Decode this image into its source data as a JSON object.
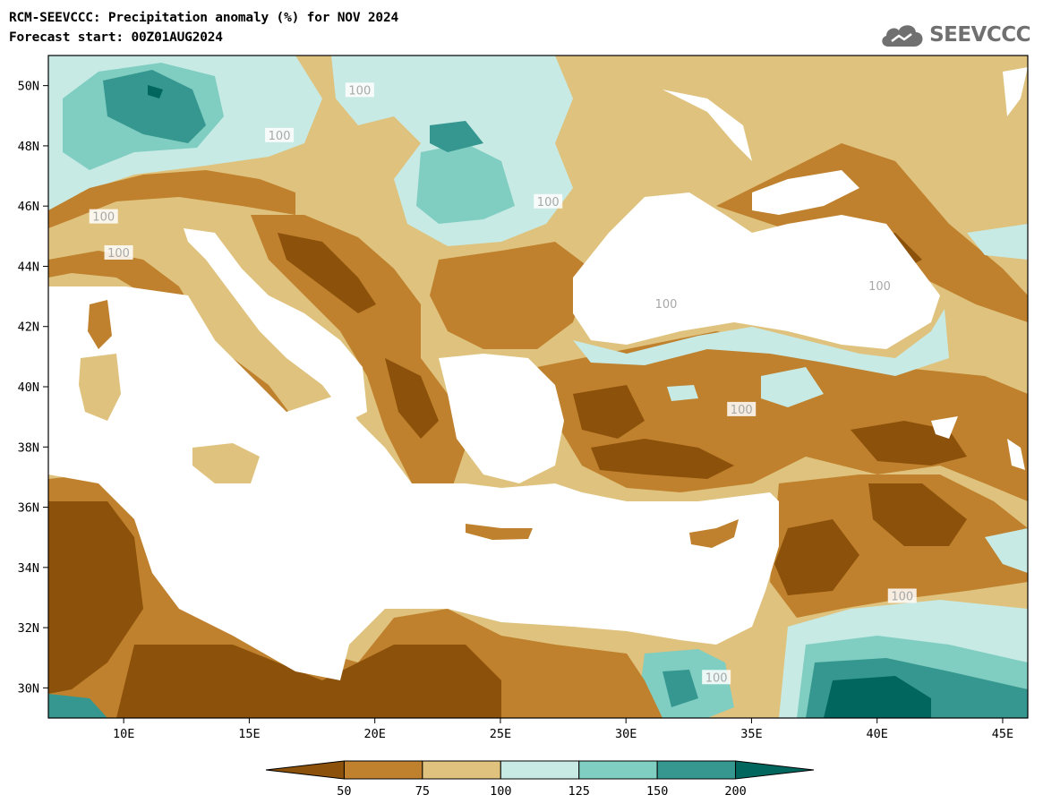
{
  "header": {
    "title": "RCM-SEEVCCC: Precipitation anomaly (%) for NOV 2024",
    "subtitle": "Forecast start: 00Z01AUG2024",
    "logo_text": "SEEVCCC"
  },
  "map": {
    "lon_range": [
      7,
      46
    ],
    "lat_range": [
      29,
      51
    ],
    "lon_ticks": [
      "10E",
      "15E",
      "20E",
      "25E",
      "30E",
      "35E",
      "40E",
      "45E"
    ],
    "lat_ticks": [
      "50N",
      "48N",
      "46N",
      "44N",
      "42N",
      "40N",
      "38N",
      "36N",
      "34N",
      "32N",
      "30N"
    ],
    "contour_labels": [
      "100",
      "100",
      "100",
      "100",
      "100",
      "100",
      "100",
      "100",
      "100",
      "100"
    ],
    "colors": {
      "below_50": "#8c510a",
      "50_75": "#bf812d",
      "75_100": "#dfc27d",
      "100_125": "#c7eae5",
      "125_150": "#80cdc1",
      "150_200": "#35978f",
      "above_200": "#01665e",
      "sea": "#ffffff"
    }
  },
  "colorbar": {
    "labels": [
      "50",
      "75",
      "100",
      "125",
      "150",
      "200"
    ],
    "colors": [
      "#8c510a",
      "#bf812d",
      "#dfc27d",
      "#c7eae5",
      "#80cdc1",
      "#35978f",
      "#01665e"
    ]
  }
}
